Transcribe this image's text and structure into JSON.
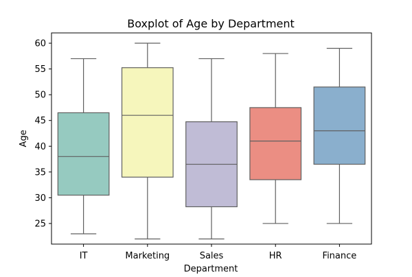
{
  "chart_data": {
    "type": "box",
    "title": "Boxplot of Age by Department",
    "xlabel": "Department",
    "ylabel": "Age",
    "ylim": [
      21,
      62
    ],
    "yticks": [
      25,
      30,
      35,
      40,
      45,
      50,
      55,
      60
    ],
    "grid": false,
    "categories": [
      "IT",
      "Marketing",
      "Sales",
      "HR",
      "Finance"
    ],
    "boxes": [
      {
        "category": "IT",
        "min": 23,
        "q1": 30.5,
        "median": 38,
        "q3": 46.5,
        "max": 57,
        "color": "#96cac0"
      },
      {
        "category": "Marketing",
        "min": 22,
        "q1": 34,
        "median": 46,
        "q3": 55.25,
        "max": 60,
        "color": "#f6f6bc"
      },
      {
        "category": "Sales",
        "min": 22,
        "q1": 28.25,
        "median": 36.5,
        "q3": 44.75,
        "max": 57,
        "color": "#c0bcd6"
      },
      {
        "category": "HR",
        "min": 25,
        "q1": 33.5,
        "median": 41,
        "q3": 47.5,
        "max": 58,
        "color": "#eb8e83"
      },
      {
        "category": "Finance",
        "min": 25,
        "q1": 36.5,
        "median": 43,
        "q3": 51.5,
        "max": 59,
        "color": "#8aafcd"
      }
    ],
    "line_color": "#5f5f5f"
  }
}
